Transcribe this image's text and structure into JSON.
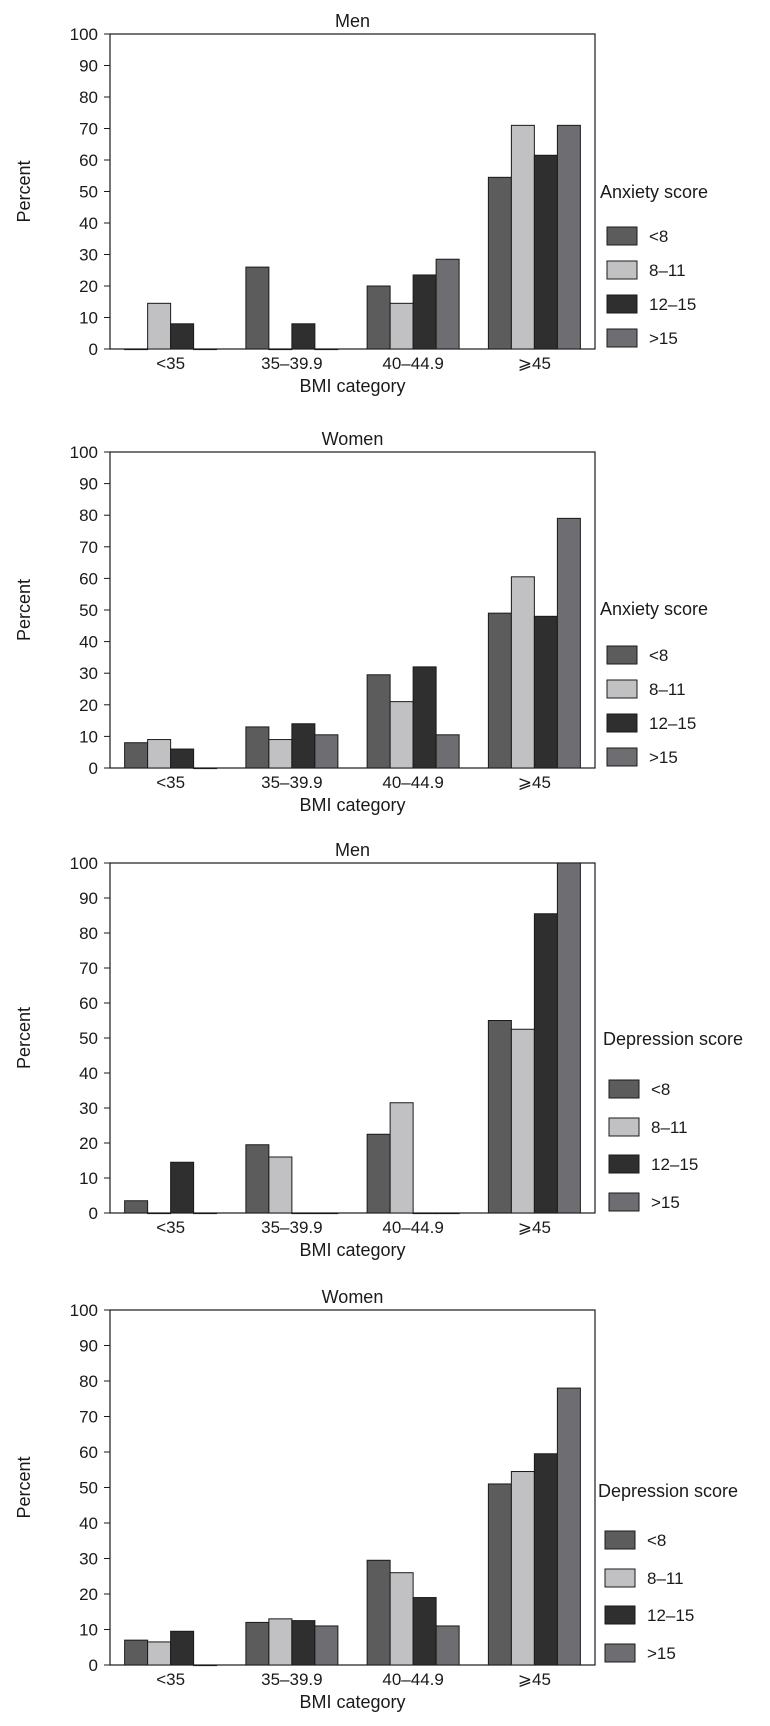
{
  "series_colors": [
    "#5c5c5c",
    "#c1c1c3",
    "#2f2f2f",
    "#6e6e72"
  ],
  "chart_data": [
    {
      "type": "bar",
      "title": "Men",
      "xlabel": "BMI category",
      "ylabel": "Percent",
      "ylim": [
        0,
        100
      ],
      "yticks": [
        0,
        10,
        20,
        30,
        40,
        50,
        60,
        70,
        80,
        90,
        100
      ],
      "categories": [
        "<35",
        "35–39.9",
        "40–44.9",
        "⩾45"
      ],
      "legend_title": "Anxiety score",
      "legend_position": "right",
      "grid": false,
      "series": [
        {
          "name": "<8",
          "values": [
            0,
            26,
            20,
            54.5
          ]
        },
        {
          "name": "8–11",
          "values": [
            14.5,
            0,
            14.5,
            71
          ]
        },
        {
          "name": "12–15",
          "values": [
            8,
            8,
            23.5,
            61.5
          ]
        },
        {
          "name": ">15",
          "values": [
            0,
            0,
            28.5,
            71
          ]
        }
      ]
    },
    {
      "type": "bar",
      "title": "Women",
      "xlabel": "BMI category",
      "ylabel": "Percent",
      "ylim": [
        0,
        100
      ],
      "yticks": [
        0,
        10,
        20,
        30,
        40,
        50,
        60,
        70,
        80,
        90,
        100
      ],
      "categories": [
        "<35",
        "35–39.9",
        "40–44.9",
        "⩾45"
      ],
      "legend_title": "Anxiety score",
      "legend_position": "right",
      "grid": false,
      "series": [
        {
          "name": "<8",
          "values": [
            8,
            13,
            29.5,
            49
          ]
        },
        {
          "name": "8–11",
          "values": [
            9,
            9,
            21,
            60.5
          ]
        },
        {
          "name": "12–15",
          "values": [
            6,
            14,
            32,
            48
          ]
        },
        {
          "name": ">15",
          "values": [
            0,
            10.5,
            10.5,
            79
          ]
        }
      ]
    },
    {
      "type": "bar",
      "title": "Men",
      "xlabel": "BMI category",
      "ylabel": "Percent",
      "ylim": [
        0,
        100
      ],
      "yticks": [
        0,
        10,
        20,
        30,
        40,
        50,
        60,
        70,
        80,
        90,
        100
      ],
      "categories": [
        "<35",
        "35–39.9",
        "40–44.9",
        "⩾45"
      ],
      "legend_title": "Depression score",
      "legend_position": "right",
      "grid": false,
      "series": [
        {
          "name": "<8",
          "values": [
            3.5,
            19.5,
            22.5,
            55
          ]
        },
        {
          "name": "8–11",
          "values": [
            0,
            16,
            31.5,
            52.5
          ]
        },
        {
          "name": "12–15",
          "values": [
            14.5,
            0,
            0,
            85.5
          ]
        },
        {
          "name": ">15",
          "values": [
            0,
            0,
            0,
            100
          ]
        }
      ]
    },
    {
      "type": "bar",
      "title": "Women",
      "xlabel": "BMI category",
      "ylabel": "Percent",
      "ylim": [
        0,
        100
      ],
      "yticks": [
        0,
        10,
        20,
        30,
        40,
        50,
        60,
        70,
        80,
        90,
        100
      ],
      "categories": [
        "<35",
        "35–39.9",
        "40–44.9",
        "⩾45"
      ],
      "legend_title": "Depression score",
      "legend_position": "right",
      "grid": false,
      "series": [
        {
          "name": "<8",
          "values": [
            7,
            12,
            29.5,
            51
          ]
        },
        {
          "name": "8–11",
          "values": [
            6.5,
            13,
            26,
            54.5
          ]
        },
        {
          "name": "12–15",
          "values": [
            9.5,
            12.5,
            19,
            59.5
          ]
        },
        {
          "name": ">15",
          "values": [
            0,
            11,
            11,
            78
          ]
        }
      ]
    }
  ]
}
